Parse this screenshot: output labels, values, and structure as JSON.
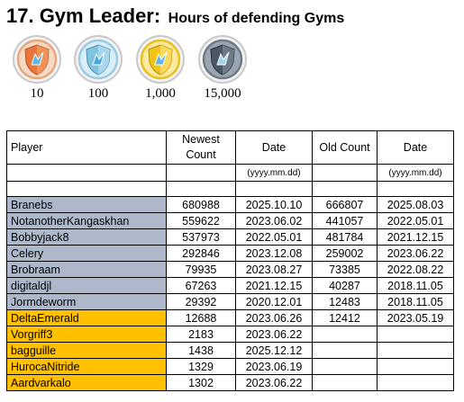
{
  "header": {
    "title": "17. Gym Leader:",
    "subtitle": "Hours of defending Gyms"
  },
  "badges": [
    {
      "label": "10",
      "tier": "bronze",
      "color": "#e8763a"
    },
    {
      "label": "100",
      "tier": "silver",
      "color": "#7fc3e0"
    },
    {
      "label": "1,000",
      "tier": "gold",
      "color": "#f0c419"
    },
    {
      "label": "15,000",
      "tier": "platinum",
      "color": "#4a5866"
    }
  ],
  "table": {
    "headers": {
      "player": "Player",
      "newest_count": "Newest Count",
      "date1": "Date",
      "old_count": "Old Count",
      "date2": "Date"
    },
    "date_format": "(yyyy.mm.dd)",
    "row_colors": {
      "grey": "#adb9ca",
      "gold": "#ffc000"
    },
    "rows": [
      {
        "player": "Branebs",
        "newest": "680988",
        "date_new": "2025.10.10",
        "old": "666807",
        "date_old": "2025.08.03",
        "color": "grey"
      },
      {
        "player": "NotanotherKangaskhan",
        "newest": "559622",
        "date_new": "2023.06.02",
        "old": "441057",
        "date_old": "2022.05.01",
        "color": "grey"
      },
      {
        "player": "Bobbyjack8",
        "newest": "537973",
        "date_new": "2022.05.01",
        "old": "481784",
        "date_old": "2021.12.15",
        "color": "grey"
      },
      {
        "player": "Celery",
        "newest": "292846",
        "date_new": "2023.12.08",
        "old": "259002",
        "date_old": "2023.06.22",
        "color": "grey"
      },
      {
        "player": "Brobraam",
        "newest": "79935",
        "date_new": "2023.08.27",
        "old": "73385",
        "date_old": "2022.08.22",
        "color": "grey"
      },
      {
        "player": "digitaldjl",
        "newest": "67263",
        "date_new": "2021.12.15",
        "old": "40287",
        "date_old": "2018.11.05",
        "color": "grey"
      },
      {
        "player": "Jormdeworm",
        "newest": "29392",
        "date_new": "2020.12.01",
        "old": "12483",
        "date_old": "2018.11.05",
        "color": "grey"
      },
      {
        "player": "DeltaEmerald",
        "newest": "12688",
        "date_new": "2023.06.26",
        "old": "12412",
        "date_old": "2023.05.19",
        "color": "gold"
      },
      {
        "player": "Vorgriff3",
        "newest": "2183",
        "date_new": "2023.06.22",
        "old": "",
        "date_old": "",
        "color": "gold"
      },
      {
        "player": "bagguille",
        "newest": "1438",
        "date_new": "2025.12.12",
        "old": "",
        "date_old": "",
        "color": "gold"
      },
      {
        "player": "HurocaNitride",
        "newest": "1329",
        "date_new": "2023.06.19",
        "old": "",
        "date_old": "",
        "color": "gold"
      },
      {
        "player": "Aardvarkalo",
        "newest": "1302",
        "date_new": "2023.06.22",
        "old": "",
        "date_old": "",
        "color": "gold"
      }
    ]
  }
}
